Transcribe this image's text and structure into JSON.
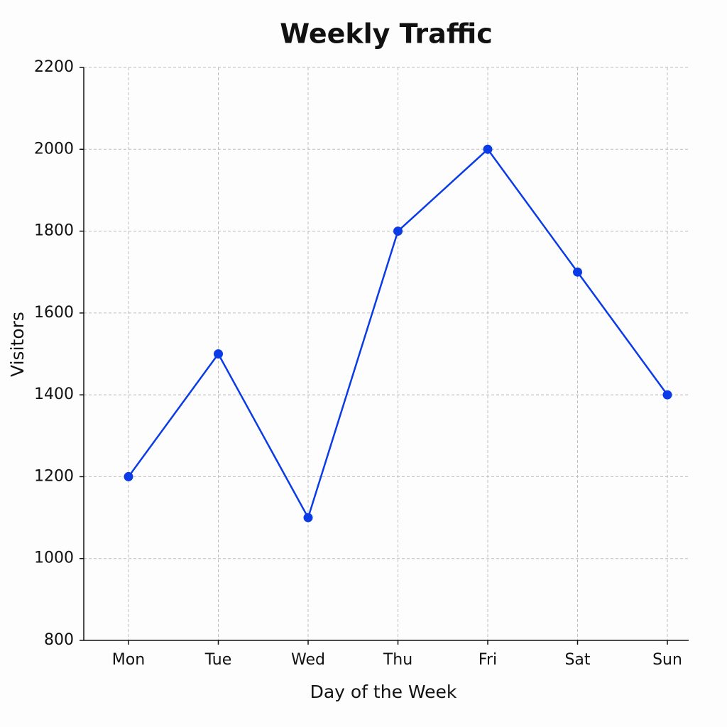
{
  "chart_data": {
    "type": "line",
    "title": "Weekly Traffic",
    "x_label": "Day of the Week",
    "y_label": "Visitors",
    "categories": [
      "Mon",
      "Tue",
      "Wed",
      "Thu",
      "Fri",
      "Sat",
      "Sun"
    ],
    "series": [
      {
        "name": "Visitors",
        "color": "#0a3be6",
        "values": [
          1200,
          1500,
          1100,
          1800,
          2000,
          1700,
          1400
        ]
      }
    ],
    "ylim": [
      800,
      2200
    ],
    "yticks": [
      800,
      1000,
      1200,
      1400,
      1600,
      1800,
      2000,
      2200
    ],
    "grid": true
  }
}
